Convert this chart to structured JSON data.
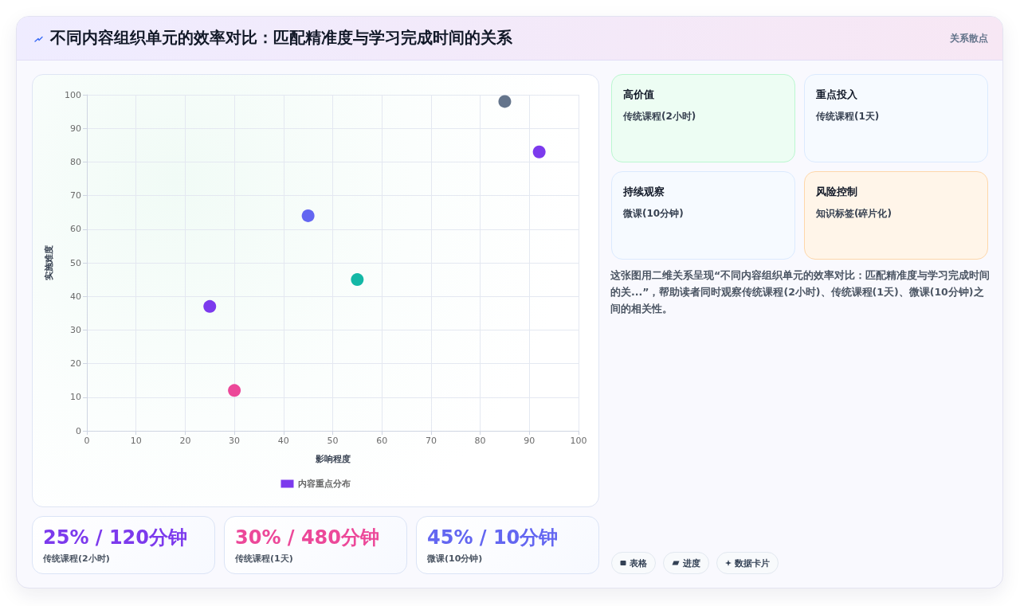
{
  "chart_data": [
    {
      "type": "scatter",
      "title": "不同内容组织单元的效率对比：匹配精准度与学习完成时间的关系",
      "annotations": [
        "关系散点"
      ],
      "xlabel": "影响程度",
      "ylabel": "实施难度",
      "series": [
        {
          "name": "内容重点分布",
          "color": "#7c3aed",
          "x": [
            25,
            30,
            45,
            55,
            85,
            92
          ],
          "values": [
            37,
            12,
            64,
            45,
            98,
            83
          ],
          "colors": [
            "#7c3aed",
            "#ec4899",
            "#6366f1",
            "#14b8a6",
            "#64748b",
            "#7c3aed"
          ]
        }
      ],
      "xlim": [
        0,
        100
      ],
      "xticks": [
        0,
        10,
        20,
        30,
        40,
        50,
        60,
        70,
        80,
        90,
        100
      ],
      "ylim": [
        0,
        100
      ],
      "yticks": [
        0,
        10,
        20,
        30,
        40,
        50,
        60,
        70,
        80,
        90,
        100
      ],
      "grid": true,
      "legend": "bottom",
      "marker": "circle"
    },
    {
      "type": "other",
      "title": "高价值",
      "subtitle": "传统课程(2小时)",
      "color": "#bbf7d0"
    },
    {
      "type": "other",
      "title": "重点投入",
      "subtitle": "传统课程(1天)",
      "color": "#dbeafe"
    },
    {
      "type": "other",
      "title": "持续观察",
      "subtitle": "微课(10分钟)",
      "color": "#dbeafe"
    },
    {
      "type": "other",
      "title": "风险控制",
      "subtitle": "知识标签(碎片化)",
      "color": "#fed7aa"
    },
    {
      "type": "other",
      "annotations": [
        "这张图用二维关系呈现“不同内容组织单元的效率对比：匹配精准度与学习完成时间的关...”，帮助读者同时观察传统课程(2小时)、传统课程(1天)、微课(10分钟)之间的相关性。"
      ]
    },
    {
      "type": "other",
      "title": "25% / 120分钟",
      "subtitle": "传统课程(2小时)",
      "color": "#7c3aed"
    },
    {
      "type": "other",
      "title": "30% / 480分钟",
      "subtitle": "传统课程(1天)",
      "color": "#ec4899"
    },
    {
      "type": "other",
      "title": "45% / 10分钟",
      "subtitle": "微课(10分钟)",
      "color": "#6366f1"
    },
    {
      "type": "other",
      "annotations": [
        "表格",
        "进度",
        "数据卡片"
      ]
    }
  ]
}
